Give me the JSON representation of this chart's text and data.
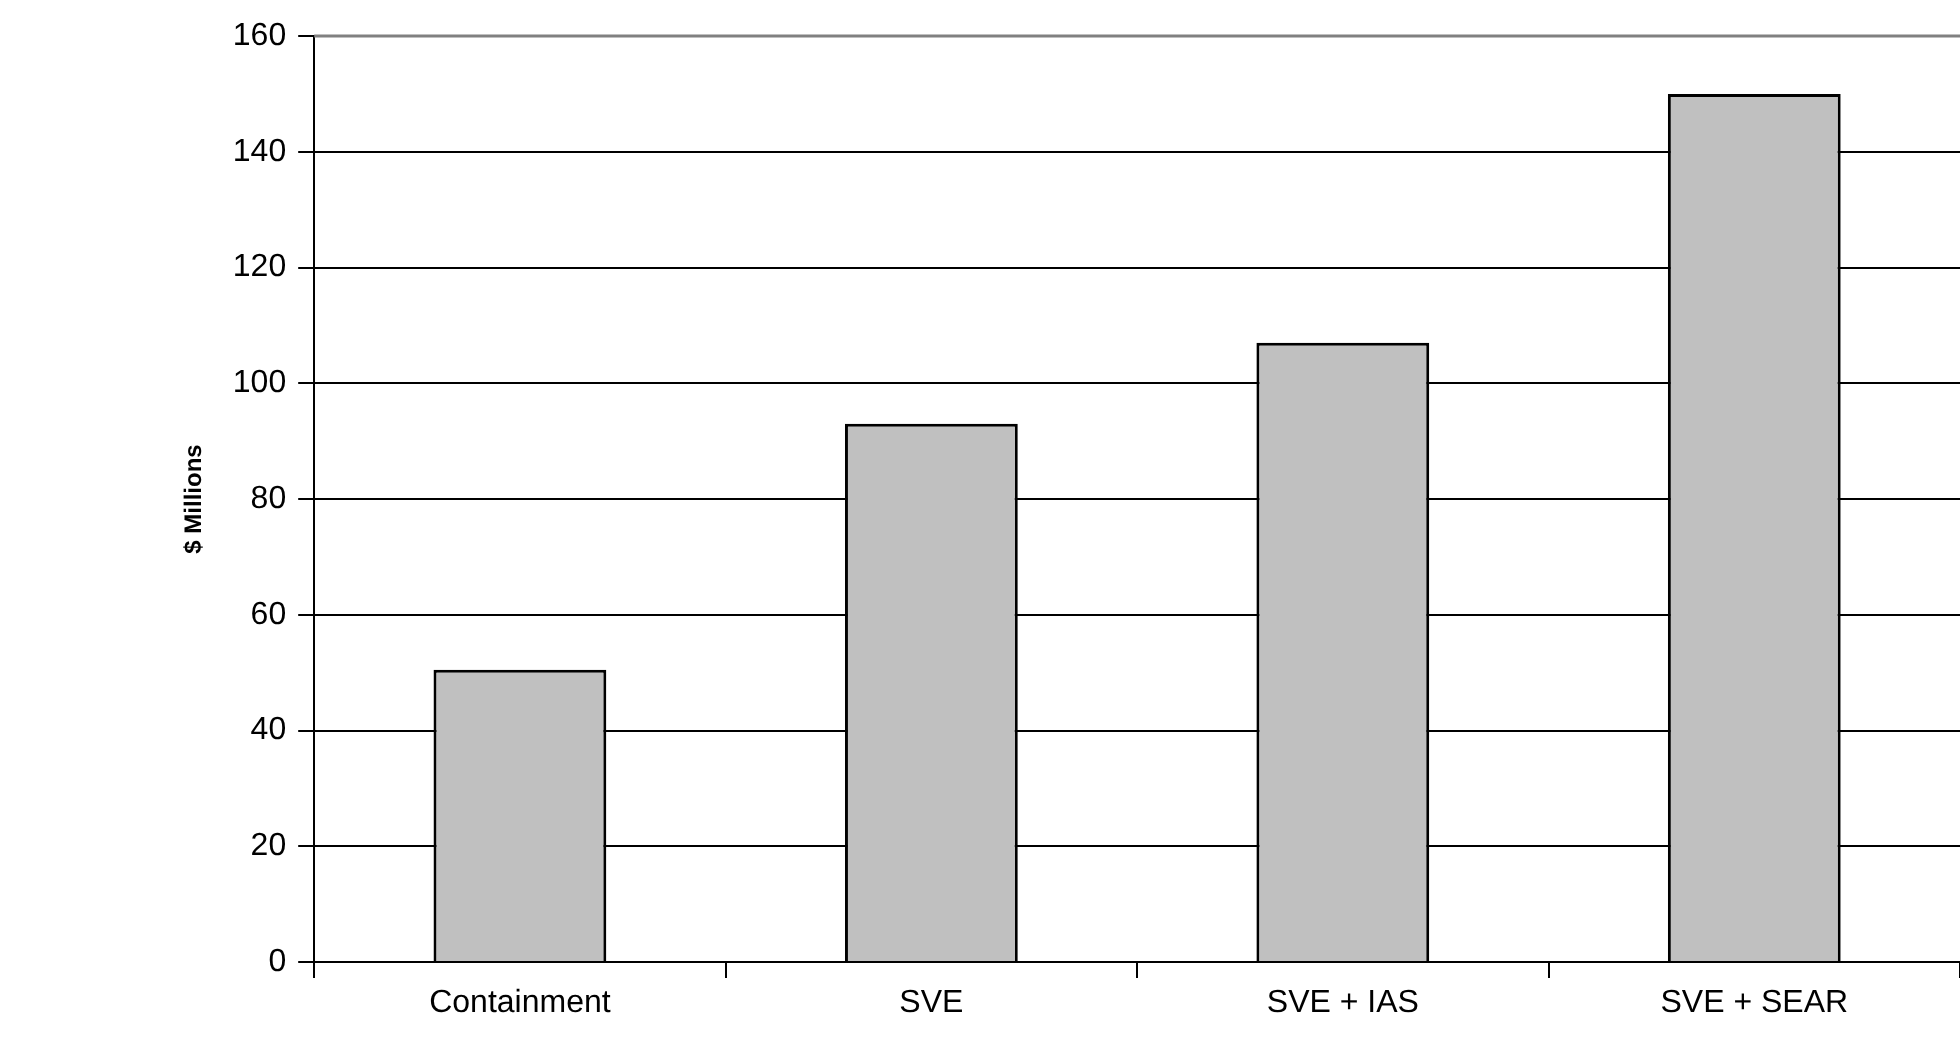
{
  "chart_data": {
    "type": "bar",
    "ylabel": "$ Millions",
    "categories": [
      "Containment",
      "SVE",
      "SVE + IAS",
      "SVE + SEAR"
    ],
    "values": [
      50.5,
      93,
      107,
      150
    ],
    "color": "#c0c0c0",
    "ylim": [
      0,
      160
    ],
    "yticks": [
      0,
      20,
      40,
      60,
      80,
      100,
      120,
      140,
      160
    ],
    "grid": "y"
  }
}
